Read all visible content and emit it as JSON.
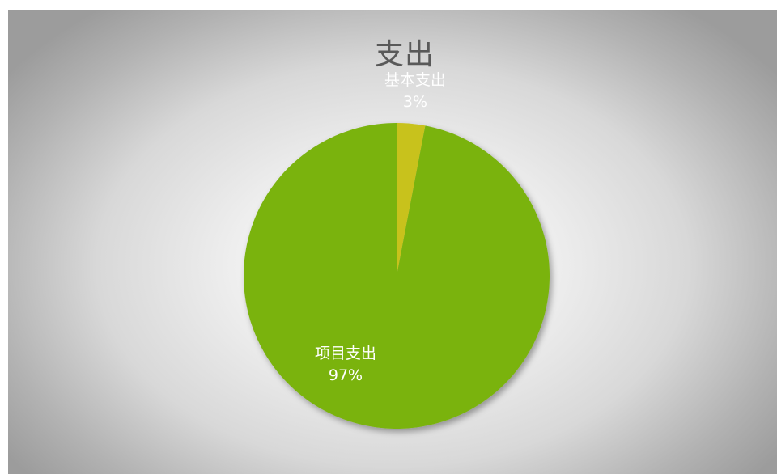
{
  "chart_data": {
    "type": "pie",
    "title": "支出",
    "slices": [
      {
        "label": "基本支出",
        "percent_label": "3%",
        "value": 3,
        "color": "#c8c21a"
      },
      {
        "label": "项目支出",
        "percent_label": "97%",
        "value": 97,
        "color": "#7ab30f"
      }
    ],
    "legend": "none"
  }
}
